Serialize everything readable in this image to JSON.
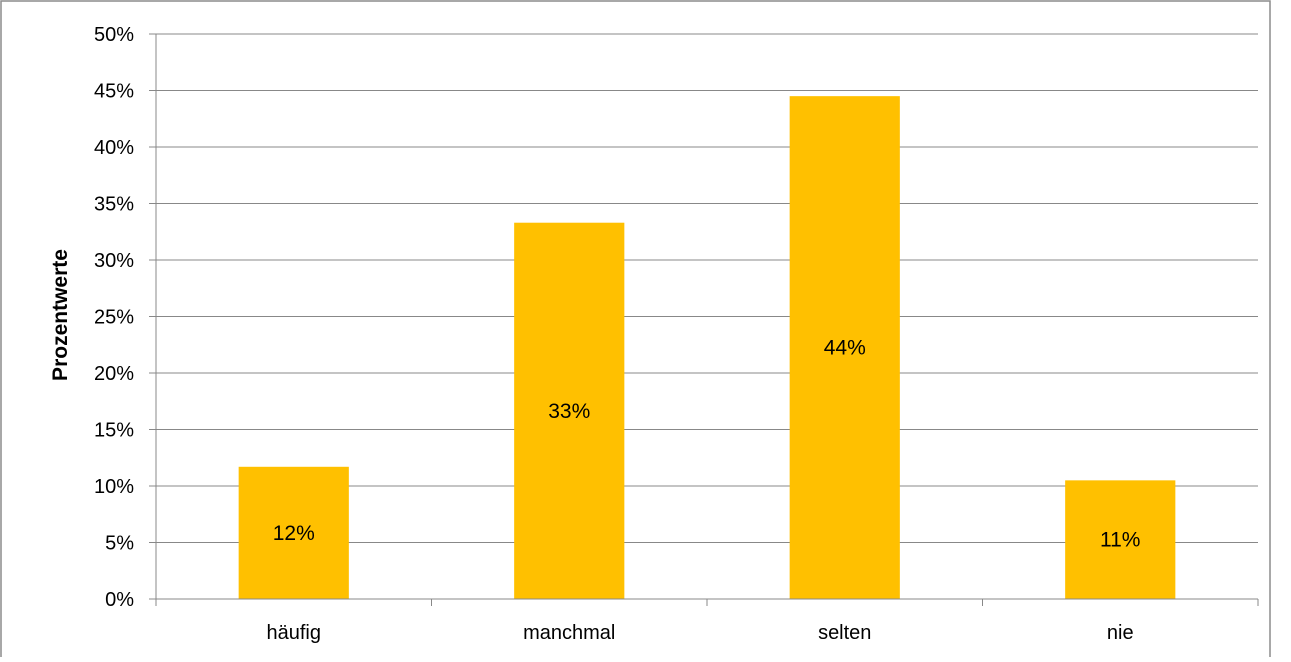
{
  "chart_data": {
    "type": "bar",
    "categories": [
      "häufig",
      "manchmal",
      "selten",
      "nie"
    ],
    "values": [
      11.7,
      33.3,
      44.5,
      10.5
    ],
    "data_labels": [
      "12%",
      "33%",
      "44%",
      "11%"
    ],
    "title": "",
    "xlabel": "",
    "ylabel": "Prozentwerte",
    "ylim": [
      0,
      50
    ],
    "ytick_step": 5,
    "ytick_labels": [
      "0%",
      "5%",
      "10%",
      "15%",
      "20%",
      "25%",
      "30%",
      "35%",
      "40%",
      "45%",
      "50%"
    ],
    "grid": true,
    "legend": "none",
    "bar_color": "#FFC000",
    "grid_color": "#888888"
  }
}
